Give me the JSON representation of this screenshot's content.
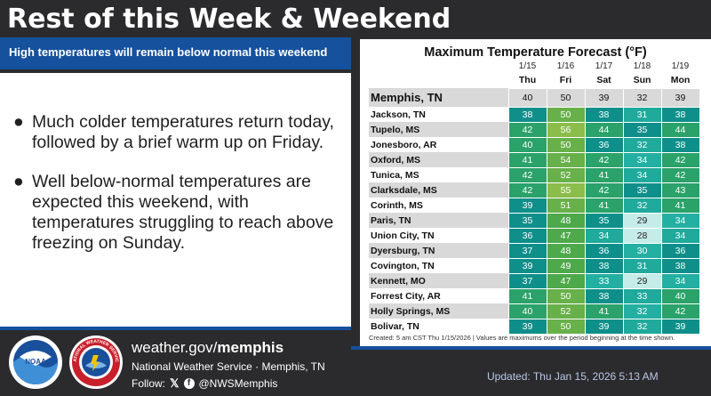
{
  "header": {
    "title": "Rest of this Week & Weekend",
    "subtitle": "High temperatures will remain below normal this weekend"
  },
  "bullets": [
    "Much colder temperatures return today, followed by a brief warm up on Friday.",
    "Well below-normal temperatures are expected this weekend, with temperatures struggling to reach above freezing on Sunday."
  ],
  "bullet_glyph": "●",
  "forecast": {
    "title": "Maximum Temperature Forecast (°F)",
    "dates": [
      "1/15",
      "1/16",
      "1/17",
      "1/18",
      "1/19"
    ],
    "days": [
      "Thu",
      "Fri",
      "Sat",
      "Sun",
      "Mon"
    ],
    "rows": [
      {
        "city": "Memphis, TN",
        "values": [
          40,
          50,
          39,
          32,
          39
        ]
      },
      {
        "city": "Jackson, TN",
        "values": [
          38,
          50,
          38,
          31,
          38
        ]
      },
      {
        "city": "Tupelo, MS",
        "values": [
          42,
          56,
          44,
          35,
          44
        ]
      },
      {
        "city": "Jonesboro, AR",
        "values": [
          40,
          50,
          36,
          32,
          38
        ]
      },
      {
        "city": "Oxford, MS",
        "values": [
          41,
          54,
          42,
          34,
          42
        ]
      },
      {
        "city": "Tunica, MS",
        "values": [
          42,
          52,
          41,
          34,
          42
        ]
      },
      {
        "city": "Clarksdale, MS",
        "values": [
          42,
          55,
          42,
          35,
          43
        ]
      },
      {
        "city": "Corinth, MS",
        "values": [
          39,
          51,
          41,
          32,
          41
        ]
      },
      {
        "city": "Paris, TN",
        "values": [
          35,
          48,
          35,
          29,
          34
        ]
      },
      {
        "city": "Union City, TN",
        "values": [
          36,
          47,
          34,
          28,
          34
        ]
      },
      {
        "city": "Dyersburg, TN",
        "values": [
          37,
          48,
          36,
          30,
          36
        ]
      },
      {
        "city": "Covington, TN",
        "values": [
          39,
          49,
          38,
          31,
          38
        ]
      },
      {
        "city": "Kennett, MO",
        "values": [
          37,
          47,
          33,
          29,
          34
        ]
      },
      {
        "city": "Forrest City, AR",
        "values": [
          41,
          50,
          38,
          33,
          40
        ]
      },
      {
        "city": "Holly Springs, MS",
        "values": [
          40,
          52,
          41,
          32,
          42
        ]
      },
      {
        "city": "Bolivar, TN",
        "values": [
          39,
          50,
          39,
          32,
          39
        ]
      }
    ],
    "footnote": "Created: 5 am CST Thu 1/15/2026  |  Values are maximums over the period beginning at the time shown."
  },
  "footer": {
    "site_prefix": "weather.gov/",
    "site_bold": "memphis",
    "agency": "National Weather Service · Memphis, TN",
    "follow_label": "Follow:",
    "x_glyph": "𝕏",
    "fb_glyph": "f",
    "handle": "@NWSMemphis",
    "updated": "Updated: Thu Jan 15, 2026 5:13 AM"
  },
  "logos": {
    "noaa_text": "NOAA",
    "nws_text": "NATIONAL WEATHER SERVICE"
  },
  "colors": {
    "background": "#2b2b2d",
    "accent_blue": "#15519d"
  }
}
